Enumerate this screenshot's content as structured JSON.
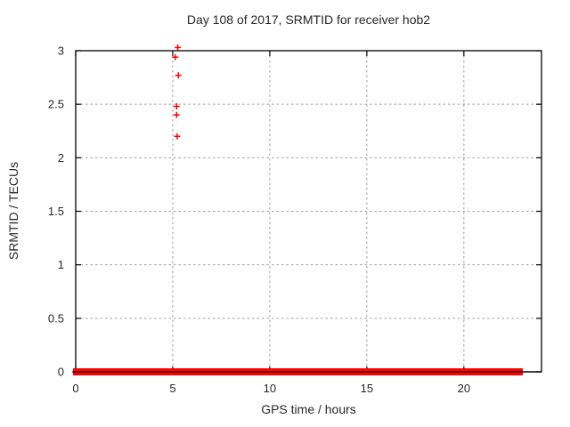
{
  "figure": {
    "background": "#ffffff"
  },
  "chart_data": {
    "type": "scatter",
    "title": "Day 108 of 2017, SRMTID for receiver hob2",
    "xlabel": "GPS time / hours",
    "ylabel": "SRMTID / TECUs",
    "xlim": [
      0,
      24
    ],
    "ylim": [
      0,
      3
    ],
    "xticks": [
      0,
      5,
      10,
      15,
      20
    ],
    "xtick_labels": [
      "0",
      "5",
      "10",
      "15",
      "20"
    ],
    "yticks": [
      0,
      0.5,
      1,
      1.5,
      2,
      2.5,
      3
    ],
    "ytick_labels": [
      "0",
      "0.5",
      "1",
      "1.5",
      "2",
      "2.5",
      "3"
    ],
    "grid": true,
    "legend": "none",
    "series": [
      {
        "name": "SRMTID",
        "marker": "plus",
        "color": "#ff0000",
        "outlier_points": [
          [
            5.26,
            3.03
          ],
          [
            5.13,
            2.94
          ],
          [
            5.29,
            2.77
          ],
          [
            5.2,
            2.48
          ],
          [
            5.2,
            2.4
          ],
          [
            5.23,
            2.2
          ]
        ],
        "baseline_band": {
          "y": 0,
          "description": "dense overlapping plus markers along y=0",
          "segments_hours": [
            [
              0.0,
              18.03
            ],
            [
              18.12,
              18.26
            ],
            [
              18.35,
              18.44
            ],
            [
              18.53,
              19.71
            ],
            [
              19.97,
              22.9
            ]
          ]
        }
      }
    ]
  },
  "colors": {
    "marker": "#ff0000",
    "axis": "#000000",
    "grid": "#9e9e9e",
    "text": "#262626",
    "background": "#ffffff"
  }
}
